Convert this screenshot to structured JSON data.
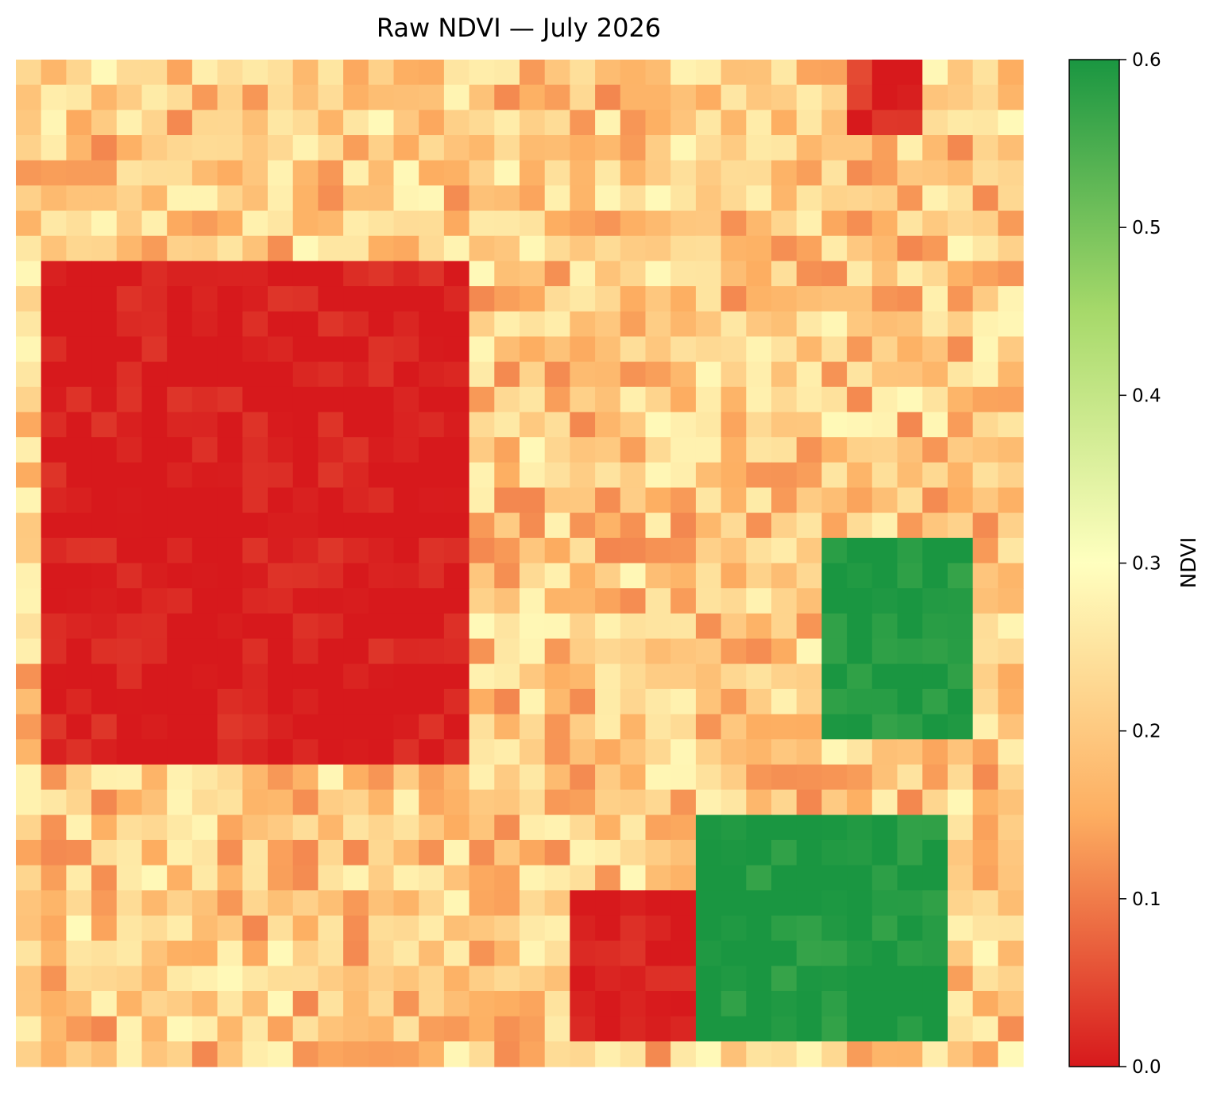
{
  "chart_data": {
    "type": "heatmap",
    "title": "Raw NDVI — July 2026",
    "colorbar": {
      "label": "NDVI",
      "range": [
        0.0,
        0.6
      ],
      "ticks": [
        "0.0",
        "0.1",
        "0.2",
        "0.3",
        "0.4",
        "0.5",
        "0.6"
      ],
      "colormap": "RdYlGn",
      "stops": [
        "#d7191c",
        "#fdae61",
        "#ffffbf",
        "#a6d96a",
        "#1a9641"
      ]
    },
    "grid": {
      "rows": 40,
      "cols": 40
    },
    "regions_approx": [
      {
        "description": "large low-NDVI (≈0.0) patch",
        "col_range": [
          1,
          17
        ],
        "row_range": [
          8,
          27
        ],
        "value": 0.0
      },
      {
        "description": "small low-NDVI patch top",
        "col_range": [
          33,
          35
        ],
        "row_range": [
          0,
          2
        ],
        "value": 0.02
      },
      {
        "description": "low-NDVI patch bottom center",
        "col_range": [
          22,
          26
        ],
        "row_range": [
          33,
          38
        ],
        "value": 0.0
      },
      {
        "description": "high-NDVI cluster right",
        "col_range": [
          32,
          37
        ],
        "row_range": [
          19,
          26
        ],
        "value": 0.6
      },
      {
        "description": "high-NDVI cluster bottom right",
        "col_range": [
          27,
          36
        ],
        "row_range": [
          30,
          38
        ],
        "value": 0.6
      }
    ],
    "background_value": 0.2
  }
}
